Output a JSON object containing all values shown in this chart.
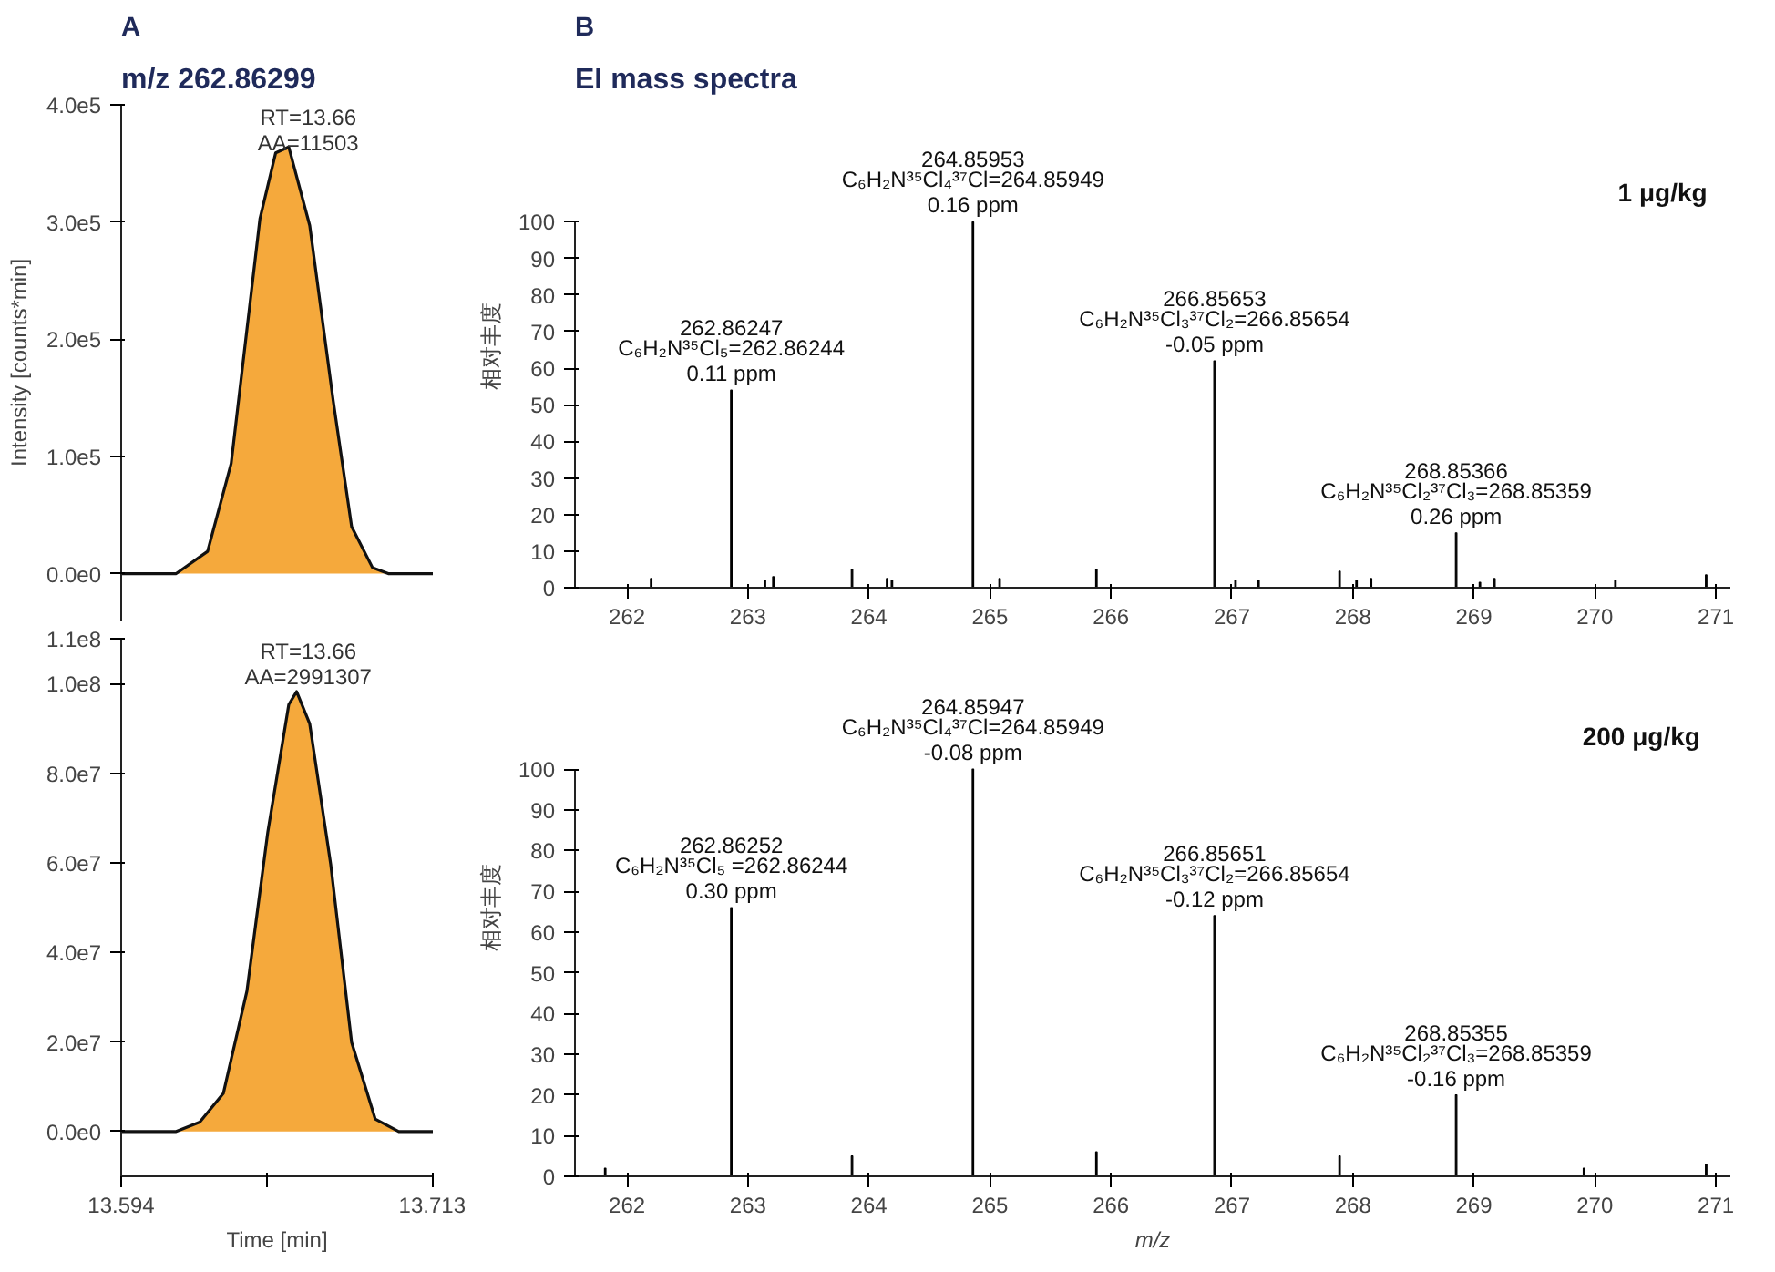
{
  "chart_data": [
    {
      "type": "area",
      "title": "A",
      "subtitle": "m/z 262.86299",
      "ylabel": "Intensity [counts*min]",
      "tick_labels": "y",
      "grid": false,
      "xlim": [
        13.594,
        13.713
      ],
      "ylim": [
        -40000,
        400000
      ],
      "yticks": [
        {
          "value": 0,
          "label": "0.0e0"
        },
        {
          "value": 100000,
          "label": "1.0e5"
        },
        {
          "value": 200000,
          "label": "2.0e5"
        },
        {
          "value": 300000,
          "label": "3.0e5"
        },
        {
          "value": 400000,
          "label": "4.0e5"
        }
      ],
      "annotations": [
        "RT=13.66",
        "AA=11503"
      ],
      "series": [
        {
          "color": "#f5a93c",
          "x": [
            13.594,
            13.615,
            13.627,
            13.636,
            13.647,
            13.653,
            13.658,
            13.666,
            13.675,
            13.682,
            13.69,
            13.696,
            13.713
          ],
          "values": [
            0,
            0,
            19000,
            94000,
            303000,
            359000,
            364000,
            297000,
            147000,
            40000,
            5000,
            0,
            0
          ]
        }
      ]
    },
    {
      "type": "area",
      "xlabel": "Time [min]",
      "grid": false,
      "xlim": [
        13.594,
        13.713
      ],
      "ylim": [
        -10000000,
        110000000
      ],
      "xticks": [
        13.594,
        {
          "value": 13.65,
          "label": null
        },
        13.713
      ],
      "yticks": [
        {
          "value": 0,
          "label": "0.0e0"
        },
        {
          "value": 20000000,
          "label": "2.0e7"
        },
        {
          "value": 40000000,
          "label": "4.0e7"
        },
        {
          "value": 60000000,
          "label": "6.0e7"
        },
        {
          "value": 80000000,
          "label": "8.0e7"
        },
        {
          "value": 100000000,
          "label": "1.0e8"
        },
        {
          "value": 110000000,
          "label": "1.1e8"
        }
      ],
      "annotations": [
        "RT=13.66",
        "AA=2991307"
      ],
      "series": [
        {
          "color": "#f5a93c",
          "x": [
            13.594,
            13.615,
            13.624,
            13.633,
            13.642,
            13.65,
            13.658,
            13.661,
            13.666,
            13.674,
            13.682,
            13.691,
            13.7,
            13.713
          ],
          "values": [
            0,
            0,
            2100000,
            8500000,
            31300000,
            66900000,
            95300000,
            98200000,
            91000000,
            59700000,
            19900000,
            2800000,
            0,
            0
          ]
        }
      ]
    },
    {
      "type": "bar",
      "title": "B",
      "subtitle": "EI mass spectra",
      "ylabel": "相对丰度",
      "grid": false,
      "xlim": [
        261.57,
        271.12
      ],
      "ylim": [
        0,
        100
      ],
      "xticks": [
        262,
        263,
        264,
        265,
        266,
        267,
        268,
        269,
        270,
        271
      ],
      "yticks": [
        0,
        10,
        20,
        30,
        40,
        50,
        60,
        70,
        80,
        90,
        100
      ],
      "annotations": [
        "1 μg/kg",
        {
          "text": "262.86247\nC₆H₂N³⁵Cl₅=262.86244\n0.11 ppm",
          "x": 262.86247,
          "y": 54
        },
        {
          "text": "264.85953\nC₆H₂N³⁵Cl₄³⁷Cl=264.85949\n0.16 ppm",
          "x": 264.85953,
          "y": 100
        },
        {
          "text": "266.85653\nC₆H₂N³⁵Cl₃³⁷Cl₂=266.85654\n-0.05 ppm",
          "x": 266.85653,
          "y": 62
        },
        {
          "text": "268.85366\nC₆H₂N³⁵Cl₂³⁷Cl₃=268.85359\n0.26 ppm",
          "x": 268.85366,
          "y": 15
        }
      ],
      "series": [
        {
          "color": "#000000",
          "x": [
            262.2,
            262.86247,
            263.14,
            263.21,
            263.86,
            264.15,
            264.19,
            264.85953,
            265.08,
            265.88,
            266.85653,
            267.03,
            267.22,
            267.89,
            268.03,
            268.15,
            268.85366,
            269.05,
            269.17,
            270.17,
            270.92
          ],
          "values": [
            2.5,
            54,
            2,
            3,
            5,
            2.5,
            2,
            100,
            2.5,
            5,
            62,
            2,
            2,
            4.5,
            2,
            2.5,
            15,
            1.5,
            2.5,
            2,
            3.5
          ]
        }
      ]
    },
    {
      "type": "bar",
      "xlabel": "m/z",
      "ylabel": "相对丰度",
      "grid": false,
      "xlim": [
        261.57,
        271.12
      ],
      "ylim": [
        0,
        100
      ],
      "xticks": [
        262,
        263,
        264,
        265,
        266,
        267,
        268,
        269,
        270,
        271
      ],
      "yticks": [
        0,
        10,
        20,
        30,
        40,
        50,
        60,
        70,
        80,
        90,
        100
      ],
      "annotations": [
        "200  μg/kg",
        {
          "text": "262.86252\nC₆H₂N³⁵Cl₅ =262.86244\n0.30 ppm",
          "x": 262.86252,
          "y": 66
        },
        {
          "text": "264.85947\nC₆H₂N³⁵Cl₄³⁷Cl=264.85949\n-0.08 ppm",
          "x": 264.85947,
          "y": 100
        },
        {
          "text": "266.85651\nC₆H₂N³⁵Cl₃³⁷Cl₂=266.85654\n-0.12 ppm",
          "x": 266.85651,
          "y": 64
        },
        {
          "text": "268.85355\nC₆H₂N³⁵Cl₂³⁷Cl₃=268.85359\n-0.16 ppm",
          "x": 268.85355,
          "y": 20
        }
      ],
      "series": [
        {
          "color": "#000000",
          "x": [
            261.82,
            262.86252,
            263.86,
            264.85947,
            265.88,
            266.85651,
            267.89,
            268.85355,
            269.91,
            270.92
          ],
          "values": [
            2,
            66,
            5,
            100,
            6,
            64,
            5,
            20,
            2,
            3
          ]
        }
      ]
    }
  ]
}
